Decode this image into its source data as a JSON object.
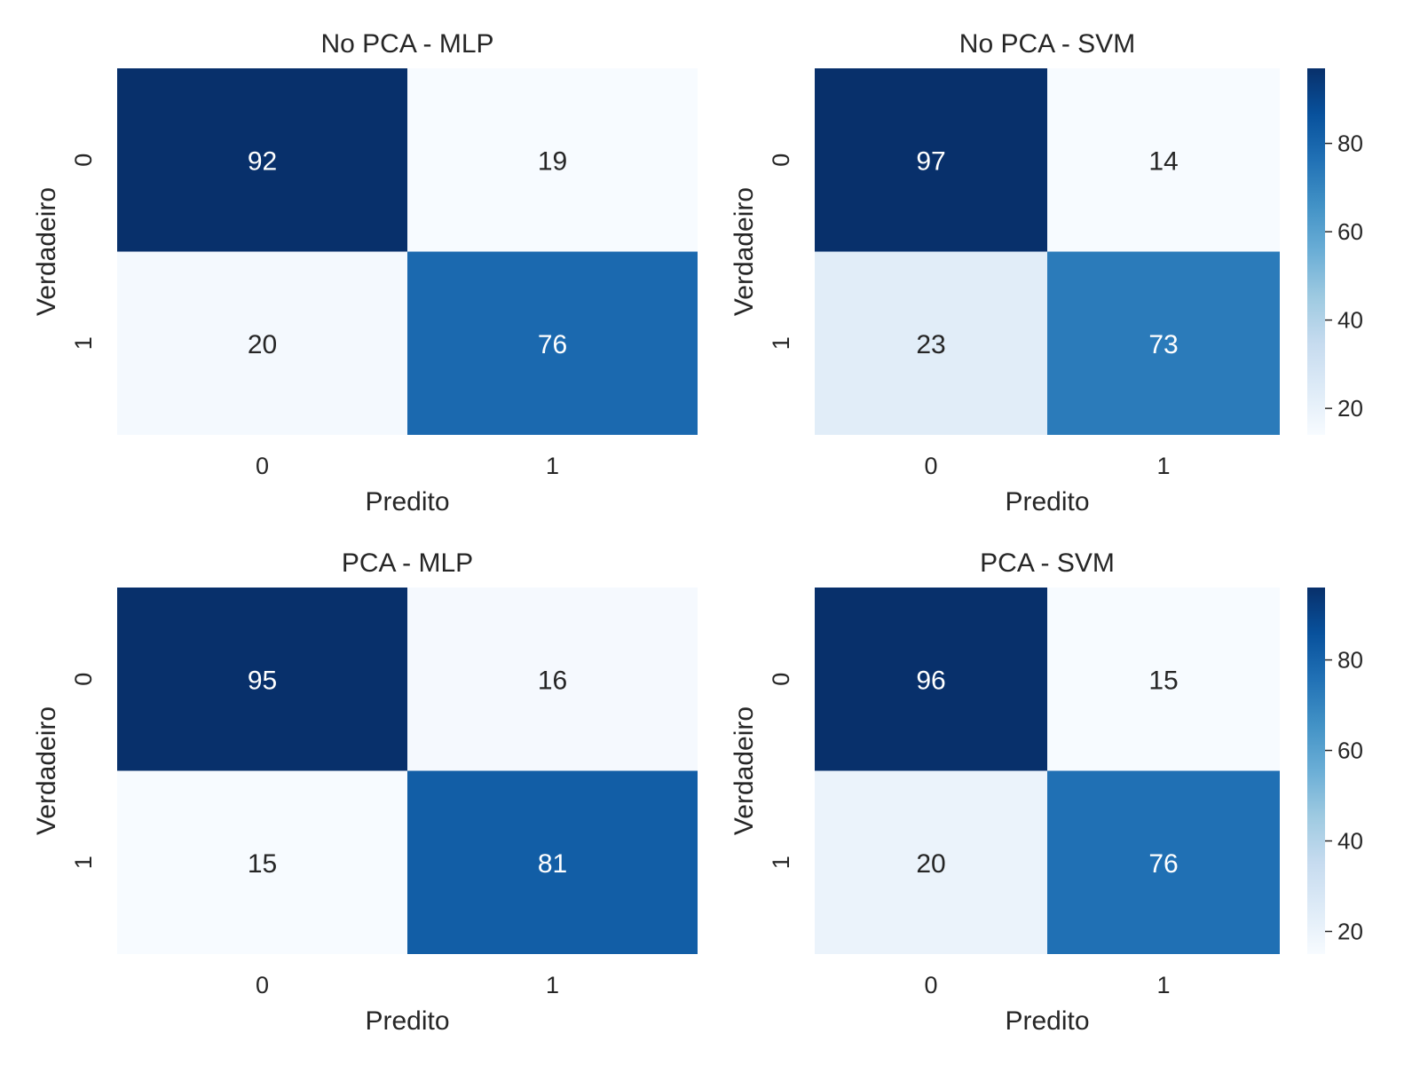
{
  "chart_data": [
    {
      "type": "heatmap",
      "title": "No PCA - MLP",
      "xlabel": "Predito",
      "ylabel": "Verdadeiro",
      "x_categories": [
        "0",
        "1"
      ],
      "y_categories": [
        "0",
        "1"
      ],
      "values": [
        [
          92,
          19
        ],
        [
          20,
          76
        ]
      ],
      "colormap": "Blues",
      "colorbar": false
    },
    {
      "type": "heatmap",
      "title": "No PCA - SVM",
      "xlabel": "Predito",
      "ylabel": "Verdadeiro",
      "x_categories": [
        "0",
        "1"
      ],
      "y_categories": [
        "0",
        "1"
      ],
      "values": [
        [
          97,
          14
        ],
        [
          23,
          73
        ]
      ],
      "colormap": "Blues",
      "colorbar": true,
      "colorbar_ticks": [
        "20",
        "40",
        "60",
        "80"
      ],
      "color_range": [
        14,
        97
      ]
    },
    {
      "type": "heatmap",
      "title": "PCA - MLP",
      "xlabel": "Predito",
      "ylabel": "Verdadeiro",
      "x_categories": [
        "0",
        "1"
      ],
      "y_categories": [
        "0",
        "1"
      ],
      "values": [
        [
          95,
          16
        ],
        [
          15,
          81
        ]
      ],
      "colormap": "Blues",
      "colorbar": false
    },
    {
      "type": "heatmap",
      "title": "PCA - SVM",
      "xlabel": "Predito",
      "ylabel": "Verdadeiro",
      "x_categories": [
        "0",
        "1"
      ],
      "y_categories": [
        "0",
        "1"
      ],
      "values": [
        [
          96,
          15
        ],
        [
          20,
          76
        ]
      ],
      "colormap": "Blues",
      "colorbar": true,
      "colorbar_ticks": [
        "20",
        "40",
        "60",
        "80"
      ],
      "color_range": [
        15,
        96
      ]
    }
  ]
}
